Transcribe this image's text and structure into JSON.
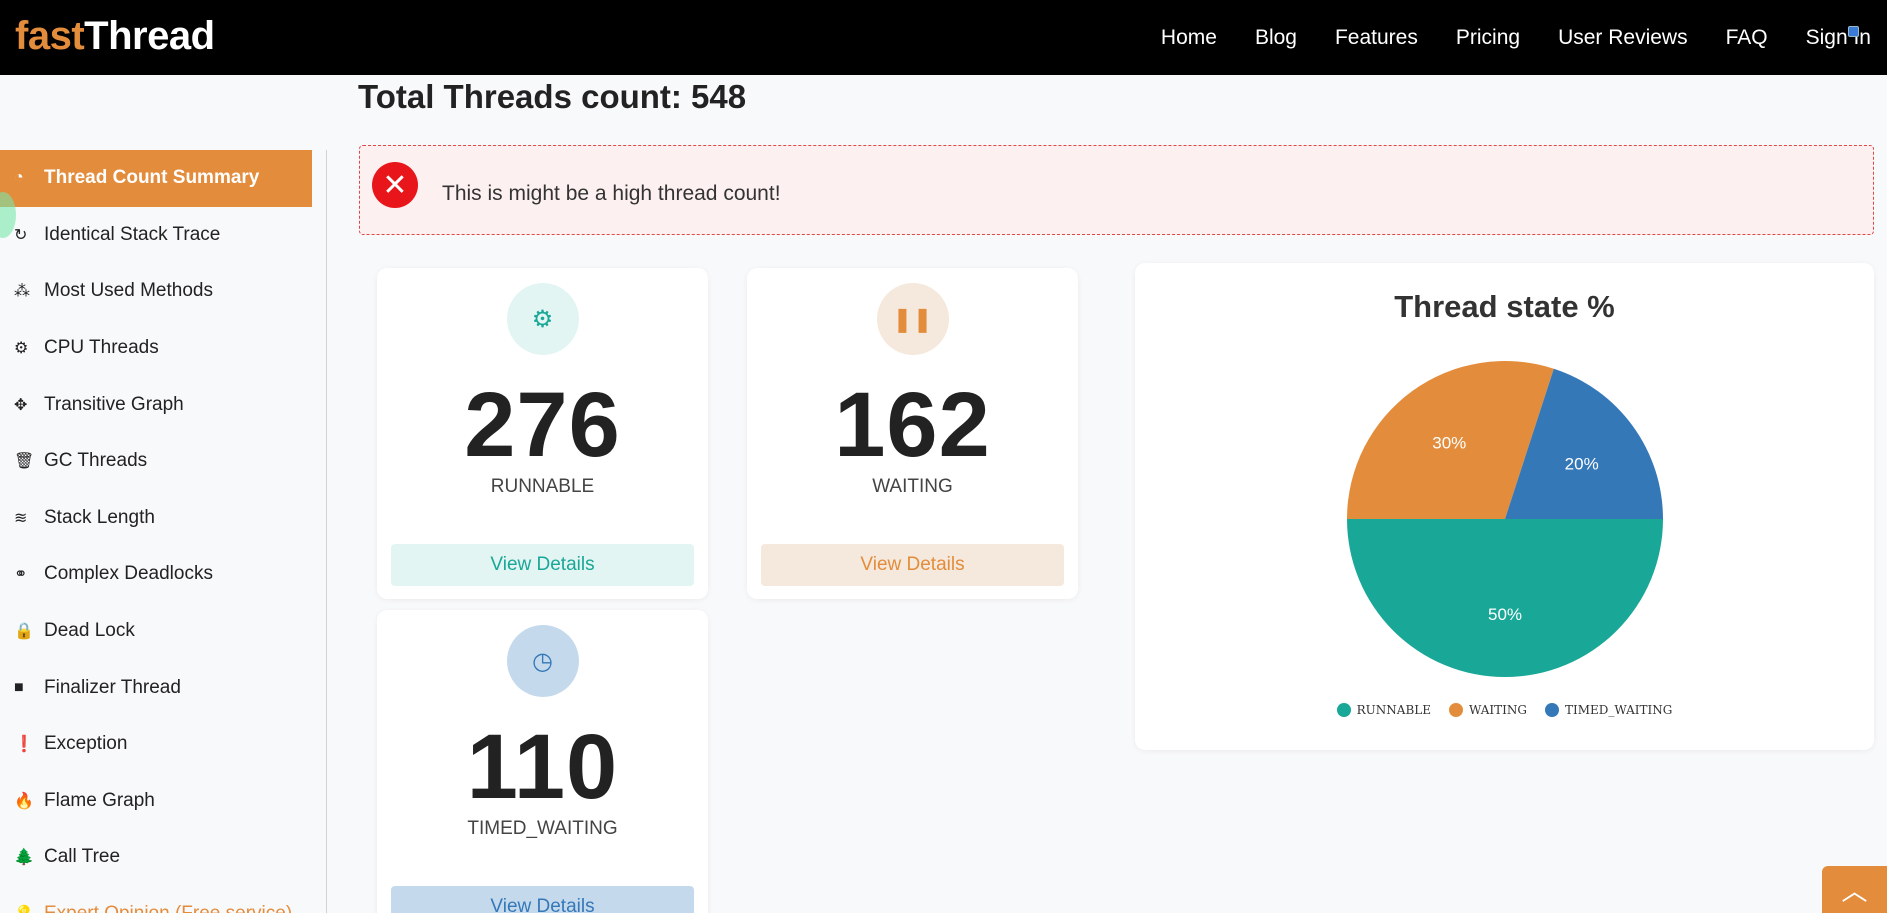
{
  "brand": {
    "part1": "fast",
    "part2": "Thread"
  },
  "nav": {
    "items": [
      "Home",
      "Blog",
      "Features",
      "Pricing",
      "User Reviews",
      "FAQ",
      "Sign In"
    ]
  },
  "sidebar": {
    "items": [
      {
        "label": "Thread Count Summary",
        "icon": "dashboard-icon",
        "glyph": "◔"
      },
      {
        "label": "Identical Stack Trace",
        "icon": "refresh-icon",
        "glyph": "↻"
      },
      {
        "label": "Most Used Methods",
        "icon": "cubes-icon",
        "glyph": "⁂"
      },
      {
        "label": "CPU Threads",
        "icon": "cogs-icon",
        "glyph": "⚙"
      },
      {
        "label": "Transitive Graph",
        "icon": "crosshairs-icon",
        "glyph": "✥"
      },
      {
        "label": "GC Threads",
        "icon": "trash-icon",
        "glyph": "🗑"
      },
      {
        "label": "Stack Length",
        "icon": "stack-icon",
        "glyph": "≋"
      },
      {
        "label": "Complex Deadlocks",
        "icon": "link-icon",
        "glyph": "⚭"
      },
      {
        "label": "Dead Lock",
        "icon": "lock-icon",
        "glyph": "🔒"
      },
      {
        "label": "Finalizer Thread",
        "icon": "stop-icon",
        "glyph": "■"
      },
      {
        "label": "Exception",
        "icon": "exclamation-circle-icon",
        "glyph": "❗"
      },
      {
        "label": "Flame Graph",
        "icon": "fire-icon",
        "glyph": "🔥"
      },
      {
        "label": "Call Tree",
        "icon": "tree-icon",
        "glyph": "🌲"
      },
      {
        "label": "Expert Opinion (Free service)",
        "icon": "lightbulb-icon",
        "glyph": "💡"
      }
    ]
  },
  "main": {
    "title": "Total Threads count: 548",
    "alert": "This is might be a high thread count!",
    "cards": {
      "runnable": {
        "value": "276",
        "label": "RUNNABLE",
        "button": "View Details",
        "icon": "gear-icon",
        "glyph": "⚙"
      },
      "waiting": {
        "value": "162",
        "label": "WAITING",
        "button": "View Details",
        "icon": "pause-icon",
        "glyph": "❚❚"
      },
      "timed_waiting": {
        "value": "110",
        "label": "TIMED_WAITING",
        "button": "View Details",
        "icon": "clock-icon",
        "glyph": "◷"
      }
    }
  },
  "chart_data": {
    "type": "pie",
    "title": "Thread state %",
    "labels": [
      "RUNNABLE",
      "WAITING",
      "TIMED_WAITING"
    ],
    "values": [
      50,
      30,
      20
    ],
    "data_labels": [
      "50%",
      "30%",
      "20%"
    ],
    "colors": [
      "#19a797",
      "#e38d3c",
      "#3478b8"
    ],
    "legend_position": "bottom"
  },
  "colors": {
    "accent": "#e38d3c",
    "runnable": "#19a797",
    "waiting": "#e38d3c",
    "timed": "#3478b8",
    "alert": "#e8151b"
  }
}
